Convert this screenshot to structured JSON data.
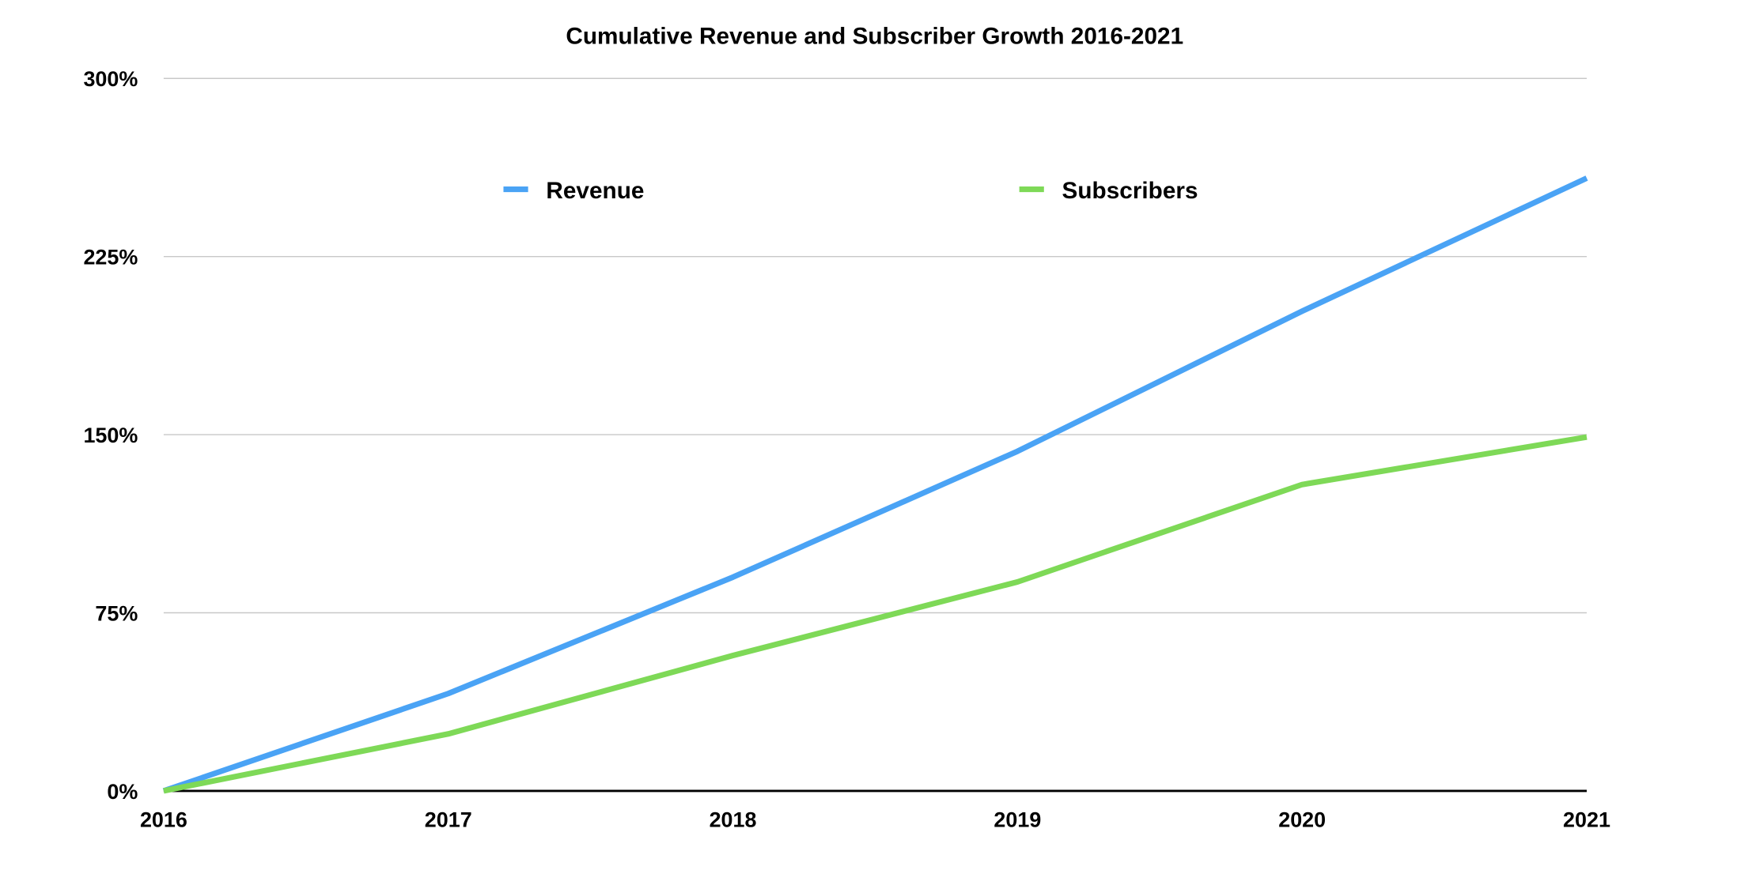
{
  "chart_data": {
    "type": "line",
    "title": "Cumulative Revenue and Subscriber Growth 2016-2021",
    "xlabel": "",
    "ylabel": "",
    "categories": [
      "2016",
      "2017",
      "2018",
      "2019",
      "2020",
      "2021"
    ],
    "ylim": [
      0,
      300
    ],
    "yticks": [
      0,
      75,
      150,
      225,
      300
    ],
    "ytick_labels": [
      "0%",
      "75%",
      "150%",
      "225%",
      "300%"
    ],
    "grid": true,
    "legend_placement": "top",
    "series": [
      {
        "name": "Revenue",
        "color": "#4aa3f5",
        "values": [
          0,
          41,
          90,
          143,
          202,
          258
        ]
      },
      {
        "name": "Subscribers",
        "color": "#7ed957",
        "values": [
          0,
          24,
          57,
          88,
          129,
          149
        ]
      }
    ]
  }
}
